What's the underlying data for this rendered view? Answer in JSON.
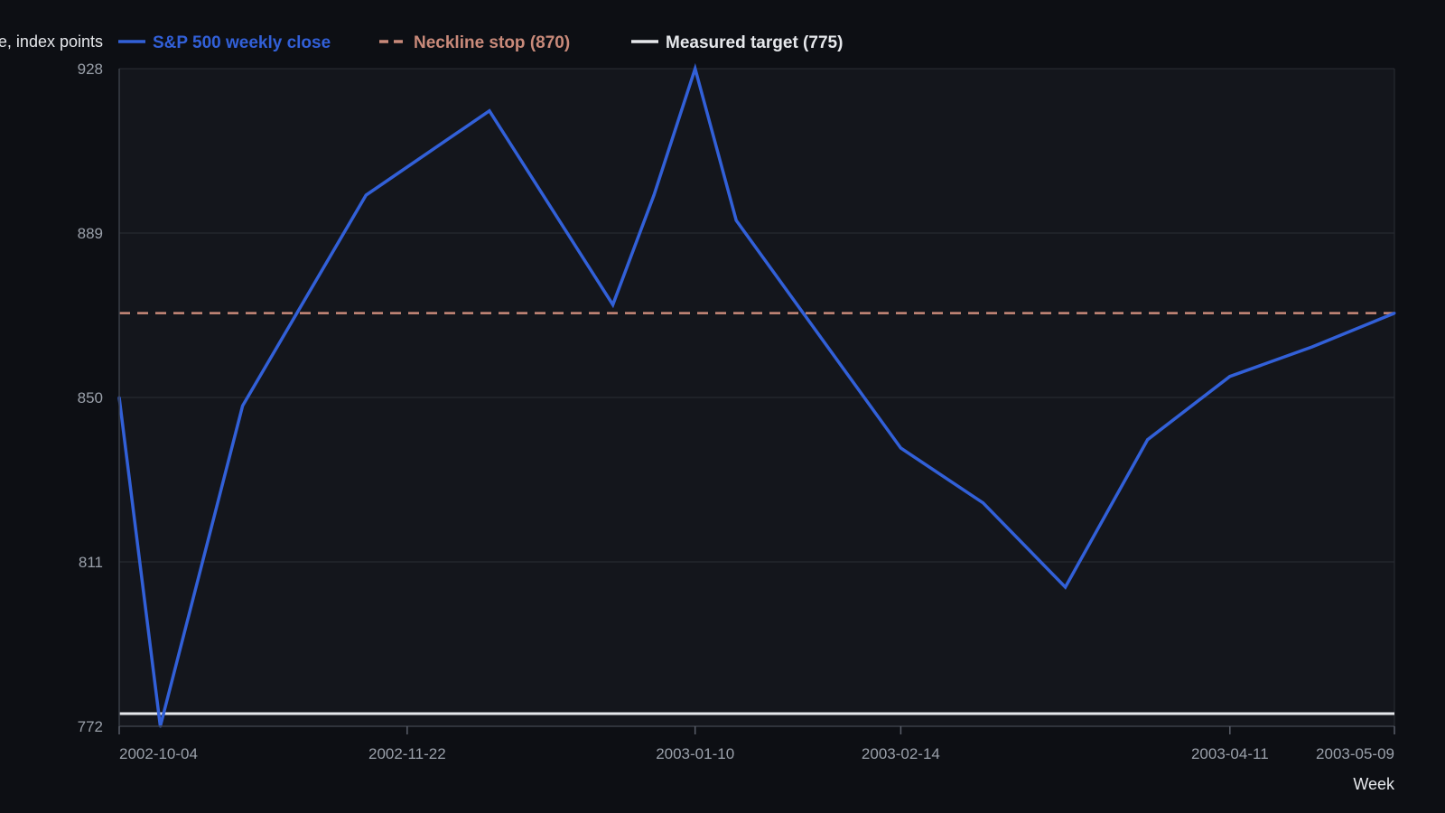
{
  "chart_data": {
    "type": "line",
    "title": "",
    "xlabel": "Week",
    "ylabel": "Close, index points",
    "grid": true,
    "legend_position": "top-left",
    "x": [
      "2002-10-04",
      "2002-10-11",
      "2002-10-18",
      "2002-10-25",
      "2002-11-01",
      "2002-11-08",
      "2002-11-15",
      "2002-11-22",
      "2002-11-29",
      "2002-12-06",
      "2002-12-13",
      "2002-12-20",
      "2002-12-27",
      "2003-01-03",
      "2003-01-10",
      "2003-01-17",
      "2003-01-24",
      "2003-01-31",
      "2003-02-07",
      "2003-02-14",
      "2003-02-21",
      "2003-02-28",
      "2003-03-07",
      "2003-03-14",
      "2003-03-21",
      "2003-03-28",
      "2003-04-04",
      "2003-04-11",
      "2003-04-18",
      "2003-04-25",
      "2003-05-02",
      "2003-05-09"
    ],
    "x_range": [
      "2002-10-04",
      "2003-05-09"
    ],
    "x_ticks": [
      "2002-10-04",
      "2002-11-22",
      "2003-01-10",
      "2003-02-14",
      "2003-04-11",
      "2003-05-09"
    ],
    "y_ticks": [
      772,
      811,
      850,
      889,
      928
    ],
    "ylim": [
      772,
      928
    ],
    "series": [
      {
        "name": "S&P 500 weekly close",
        "color": "#3260d8",
        "style": "solid",
        "points": [
          {
            "x": "2002-10-04",
            "y": 850
          },
          {
            "x": "2002-10-11",
            "y": 772
          },
          {
            "x": "2002-10-25",
            "y": 848
          },
          {
            "x": "2002-11-15",
            "y": 898
          },
          {
            "x": "2002-12-06",
            "y": 918
          },
          {
            "x": "2002-12-27",
            "y": 872
          },
          {
            "x": "2003-01-03",
            "y": 898
          },
          {
            "x": "2003-01-10",
            "y": 928
          },
          {
            "x": "2003-01-17",
            "y": 892
          },
          {
            "x": "2003-02-14",
            "y": 838
          },
          {
            "x": "2003-02-28",
            "y": 825
          },
          {
            "x": "2003-03-14",
            "y": 805
          },
          {
            "x": "2003-03-28",
            "y": 840
          },
          {
            "x": "2003-04-11",
            "y": 855
          },
          {
            "x": "2003-04-25",
            "y": 862
          },
          {
            "x": "2003-05-09",
            "y": 870
          }
        ]
      },
      {
        "name": "Neckline stop (870)",
        "color": "#c98a7a",
        "style": "dashed",
        "value": 870
      },
      {
        "name": "Measured target (775)",
        "color": "#e6e8ec",
        "style": "solid",
        "value": 775
      }
    ]
  }
}
